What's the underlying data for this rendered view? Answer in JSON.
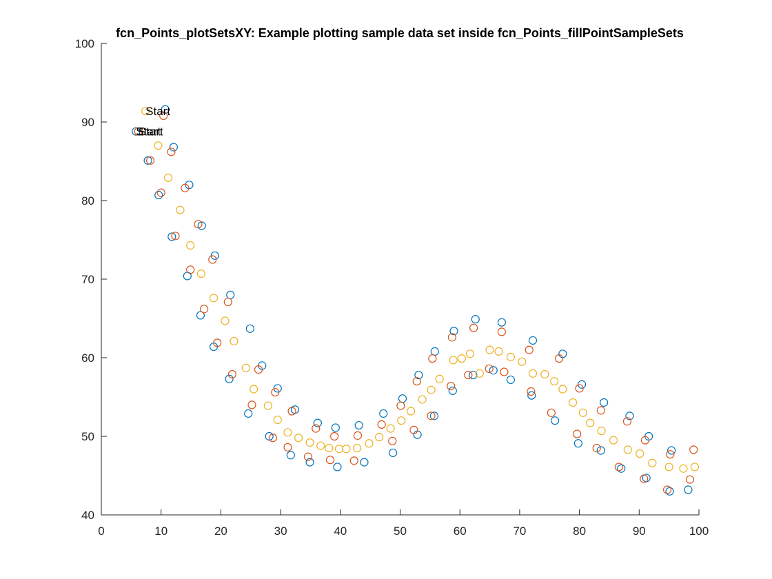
{
  "chart_data": {
    "type": "scatter",
    "title": "fcn_Points_plotSetsXY: Example plotting sample data set inside fcn_Points_fillPointSampleSets",
    "xlabel": "",
    "ylabel": "",
    "xlim": [
      0,
      100
    ],
    "ylim": [
      40,
      100
    ],
    "xticks": [
      0,
      10,
      20,
      30,
      40,
      50,
      60,
      70,
      80,
      90,
      100
    ],
    "yticks": [
      40,
      50,
      60,
      70,
      80,
      90,
      100
    ],
    "grid": false,
    "marker": "open-circle",
    "series": [
      {
        "color": "#0072BD",
        "x": [
          5.8,
          7.8,
          9.6,
          10.7,
          11.8,
          12.1,
          14.4,
          14.7,
          16.6,
          16.8,
          18.8,
          19.0,
          21.4,
          21.6,
          24.6,
          24.9,
          26.9,
          28.1,
          29.5,
          31.7,
          32.4,
          34.9,
          36.2,
          39.2,
          39.5,
          43.1,
          44.0,
          47.2,
          48.8,
          50.4,
          52.9,
          53.1,
          55.7,
          55.8,
          58.8,
          59.0,
          62.2,
          62.6,
          65.6,
          67.0,
          68.5,
          72.0,
          72.2,
          75.9,
          77.2,
          79.8,
          80.4,
          83.6,
          84.1,
          87.0,
          88.4,
          91.2,
          91.6,
          95.1,
          95.4,
          98.2
        ],
        "y": [
          88.8,
          85.1,
          80.7,
          91.6,
          75.4,
          86.8,
          70.4,
          82.0,
          65.4,
          76.8,
          61.4,
          73.0,
          57.3,
          68.0,
          52.9,
          63.7,
          59.0,
          50.0,
          56.1,
          47.6,
          53.4,
          46.7,
          51.7,
          51.1,
          46.1,
          51.4,
          46.7,
          52.9,
          47.9,
          54.8,
          50.2,
          57.8,
          52.6,
          60.8,
          55.8,
          63.4,
          57.8,
          64.9,
          58.4,
          64.5,
          57.2,
          55.2,
          62.2,
          52.0,
          60.5,
          49.1,
          56.6,
          48.2,
          54.3,
          45.9,
          52.6,
          44.7,
          50.0,
          43.0,
          48.2,
          43.2
        ]
      },
      {
        "color": "#D95319",
        "x": [
          6.2,
          8.2,
          10.0,
          10.4,
          11.7,
          12.4,
          14.0,
          14.9,
          16.2,
          17.2,
          18.6,
          19.4,
          21.2,
          21.9,
          25.2,
          26.3,
          28.7,
          29.1,
          31.2,
          31.9,
          34.6,
          35.9,
          38.3,
          39.0,
          42.3,
          42.9,
          46.9,
          48.7,
          50.1,
          52.3,
          52.8,
          55.2,
          55.4,
          58.5,
          58.7,
          61.4,
          62.3,
          64.9,
          67.0,
          67.4,
          71.6,
          71.9,
          75.3,
          76.6,
          79.6,
          80.0,
          82.9,
          83.6,
          86.6,
          88.0,
          90.8,
          91.0,
          94.7,
          95.2,
          98.5,
          99.1
        ],
        "y": [
          88.8,
          85.1,
          81.0,
          90.8,
          86.2,
          75.5,
          81.6,
          71.2,
          77.0,
          66.2,
          72.5,
          61.9,
          67.1,
          57.9,
          54.0,
          58.5,
          49.8,
          55.6,
          48.6,
          53.2,
          47.4,
          51.0,
          47.0,
          50.0,
          46.9,
          50.1,
          51.5,
          49.4,
          53.9,
          50.8,
          57.0,
          52.6,
          59.9,
          56.4,
          62.6,
          57.8,
          63.8,
          58.6,
          63.3,
          58.2,
          61.0,
          55.7,
          53.0,
          59.9,
          50.3,
          56.1,
          48.5,
          53.3,
          46.1,
          51.9,
          44.6,
          49.5,
          43.2,
          47.7,
          44.5,
          48.3
        ]
      },
      {
        "color": "#EDB120",
        "x": [
          7.4,
          9.5,
          11.2,
          13.2,
          14.9,
          16.7,
          18.8,
          20.7,
          22.2,
          24.2,
          25.5,
          27.9,
          29.5,
          31.2,
          33.0,
          34.9,
          36.7,
          38.1,
          39.8,
          41.0,
          42.8,
          44.8,
          46.5,
          48.4,
          50.2,
          51.8,
          53.7,
          55.2,
          56.6,
          58.9,
          60.3,
          61.7,
          63.3,
          65.0,
          66.5,
          68.5,
          70.4,
          72.2,
          74.2,
          75.8,
          77.2,
          78.9,
          80.6,
          81.8,
          83.7,
          85.7,
          88.1,
          90.1,
          92.2,
          95.0,
          97.4,
          99.3
        ],
        "y": [
          91.4,
          87.0,
          82.9,
          78.8,
          74.3,
          70.7,
          67.6,
          64.7,
          62.1,
          58.7,
          56.0,
          53.9,
          52.1,
          50.5,
          49.8,
          49.2,
          48.8,
          48.5,
          48.4,
          48.4,
          48.5,
          49.1,
          49.9,
          51.0,
          52.0,
          53.2,
          54.7,
          55.9,
          57.3,
          59.7,
          59.9,
          60.5,
          58.0,
          61.0,
          60.8,
          60.1,
          59.5,
          58.0,
          57.9,
          57.0,
          56.0,
          54.3,
          53.0,
          51.7,
          50.7,
          49.5,
          48.3,
          47.8,
          46.6,
          46.1,
          45.9,
          46.1
        ]
      }
    ],
    "annotations": [
      {
        "text": "Start",
        "x": 7.4,
        "y": 91.4
      },
      {
        "text": "Start",
        "x": 5.8,
        "y": 88.8
      },
      {
        "text": "Start",
        "x": 6.2,
        "y": 88.8
      }
    ]
  }
}
